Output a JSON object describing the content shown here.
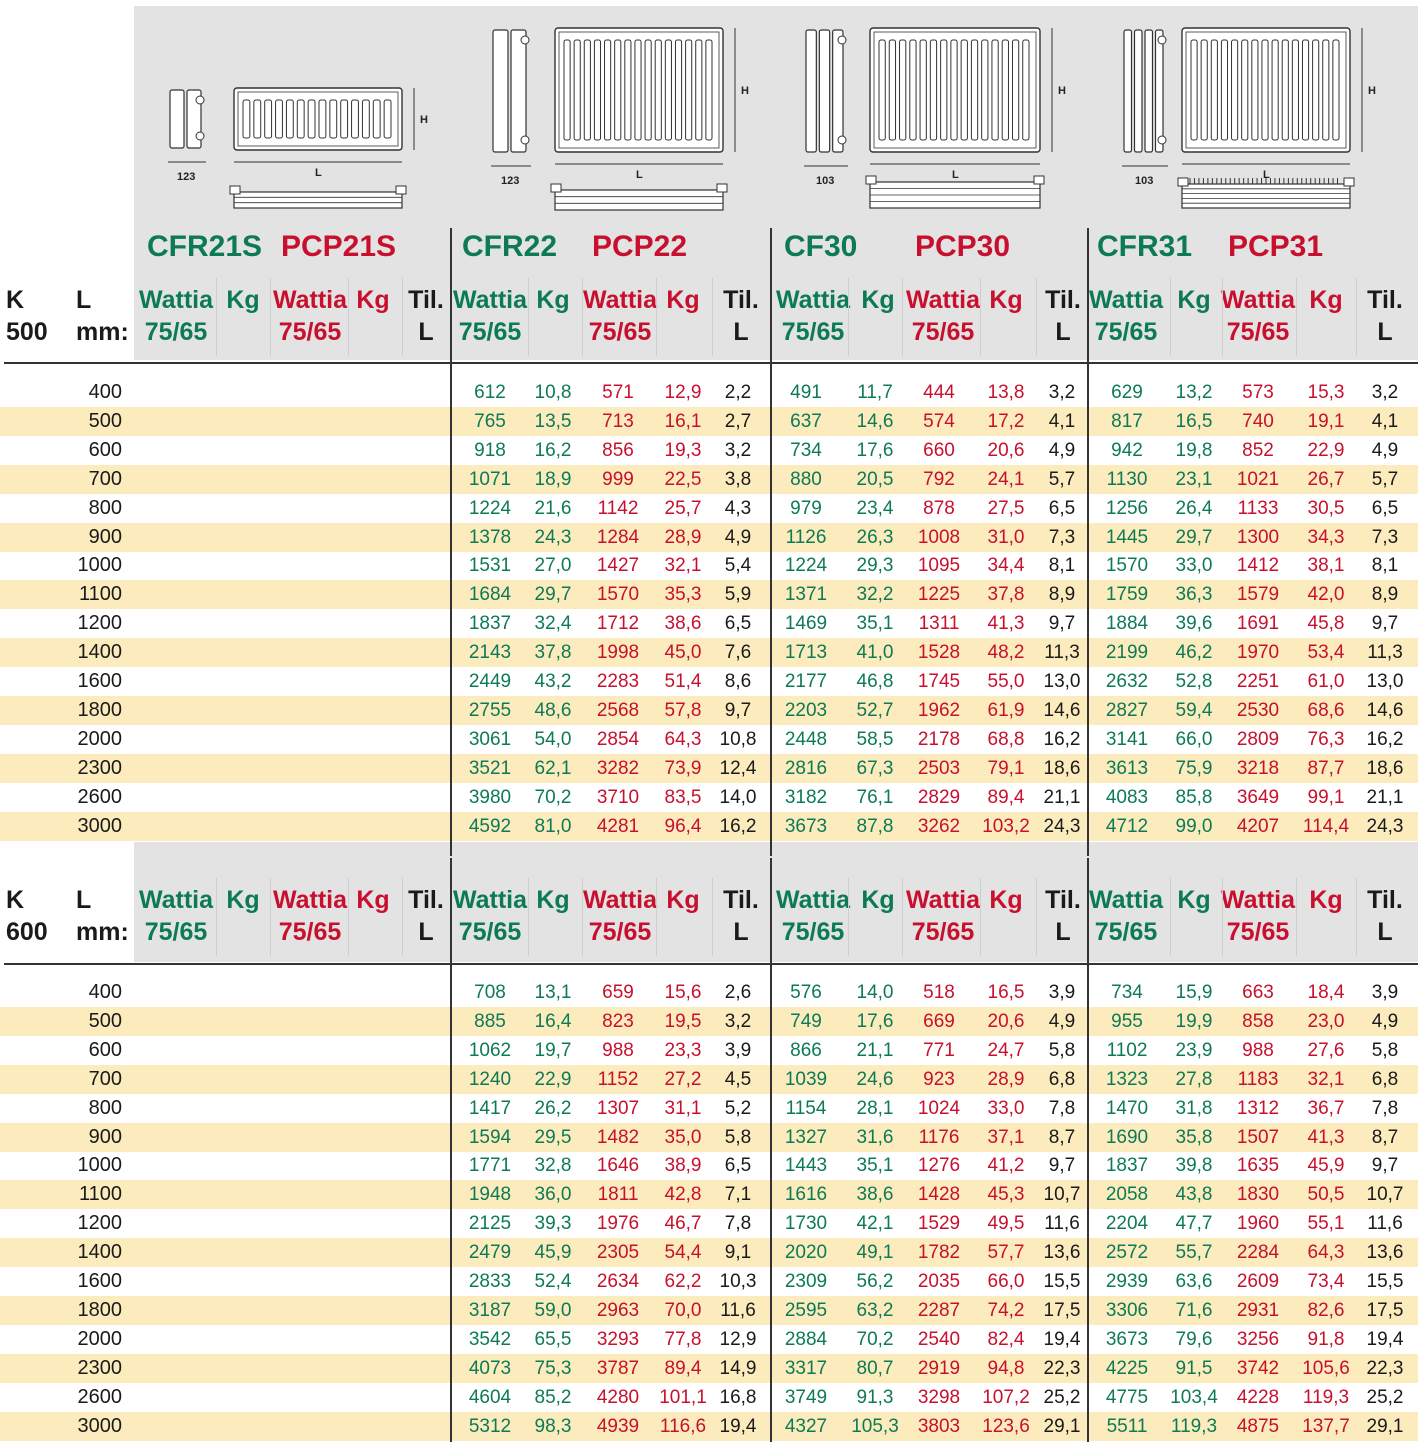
{
  "series_labels": [
    {
      "left": "CFR21S",
      "right": "PCP21S"
    },
    {
      "left": "CFR22",
      "right": "PCP22"
    },
    {
      "left": "CF30",
      "right": "PCP30"
    },
    {
      "left": "CFR31",
      "right": "PCP31"
    }
  ],
  "depths": [
    "123",
    "123",
    "103",
    "103"
  ],
  "dim_labels": {
    "h": "H",
    "l": "L"
  },
  "header": {
    "k": "K",
    "l": "L",
    "mm": "mm:",
    "wattia": "Wattia",
    "wattia_sub": "75/65",
    "kg": "Kg",
    "til": "Til.",
    "til_sub": "L"
  },
  "sections": [
    {
      "k_value": "500",
      "rows": [
        {
          "L": "400",
          "v": [
            "612",
            "10,8",
            "571",
            "12,9",
            "2,2",
            "491",
            "11,7",
            "444",
            "13,8",
            "3,2",
            "629",
            "13,2",
            "573",
            "15,3",
            "3,2"
          ]
        },
        {
          "L": "500",
          "v": [
            "765",
            "13,5",
            "713",
            "16,1",
            "2,7",
            "637",
            "14,6",
            "574",
            "17,2",
            "4,1",
            "817",
            "16,5",
            "740",
            "19,1",
            "4,1"
          ]
        },
        {
          "L": "600",
          "v": [
            "918",
            "16,2",
            "856",
            "19,3",
            "3,2",
            "734",
            "17,6",
            "660",
            "20,6",
            "4,9",
            "942",
            "19,8",
            "852",
            "22,9",
            "4,9"
          ]
        },
        {
          "L": "700",
          "v": [
            "1071",
            "18,9",
            "999",
            "22,5",
            "3,8",
            "880",
            "20,5",
            "792",
            "24,1",
            "5,7",
            "1130",
            "23,1",
            "1021",
            "26,7",
            "5,7"
          ]
        },
        {
          "L": "800",
          "v": [
            "1224",
            "21,6",
            "1142",
            "25,7",
            "4,3",
            "979",
            "23,4",
            "878",
            "27,5",
            "6,5",
            "1256",
            "26,4",
            "1133",
            "30,5",
            "6,5"
          ]
        },
        {
          "L": "900",
          "v": [
            "1378",
            "24,3",
            "1284",
            "28,9",
            "4,9",
            "1126",
            "26,3",
            "1008",
            "31,0",
            "7,3",
            "1445",
            "29,7",
            "1300",
            "34,3",
            "7,3"
          ]
        },
        {
          "L": "1000",
          "v": [
            "1531",
            "27,0",
            "1427",
            "32,1",
            "5,4",
            "1224",
            "29,3",
            "1095",
            "34,4",
            "8,1",
            "1570",
            "33,0",
            "1412",
            "38,1",
            "8,1"
          ]
        },
        {
          "L": "1100",
          "v": [
            "1684",
            "29,7",
            "1570",
            "35,3",
            "5,9",
            "1371",
            "32,2",
            "1225",
            "37,8",
            "8,9",
            "1759",
            "36,3",
            "1579",
            "42,0",
            "8,9"
          ]
        },
        {
          "L": "1200",
          "v": [
            "1837",
            "32,4",
            "1712",
            "38,6",
            "6,5",
            "1469",
            "35,1",
            "1311",
            "41,3",
            "9,7",
            "1884",
            "39,6",
            "1691",
            "45,8",
            "9,7"
          ]
        },
        {
          "L": "1400",
          "v": [
            "2143",
            "37,8",
            "1998",
            "45,0",
            "7,6",
            "1713",
            "41,0",
            "1528",
            "48,2",
            "11,3",
            "2199",
            "46,2",
            "1970",
            "53,4",
            "11,3"
          ]
        },
        {
          "L": "1600",
          "v": [
            "2449",
            "43,2",
            "2283",
            "51,4",
            "8,6",
            "2177",
            "46,8",
            "1745",
            "55,0",
            "13,0",
            "2632",
            "52,8",
            "2251",
            "61,0",
            "13,0"
          ]
        },
        {
          "L": "1800",
          "v": [
            "2755",
            "48,6",
            "2568",
            "57,8",
            "9,7",
            "2203",
            "52,7",
            "1962",
            "61,9",
            "14,6",
            "2827",
            "59,4",
            "2530",
            "68,6",
            "14,6"
          ]
        },
        {
          "L": "2000",
          "v": [
            "3061",
            "54,0",
            "2854",
            "64,3",
            "10,8",
            "2448",
            "58,5",
            "2178",
            "68,8",
            "16,2",
            "3141",
            "66,0",
            "2809",
            "76,3",
            "16,2"
          ]
        },
        {
          "L": "2300",
          "v": [
            "3521",
            "62,1",
            "3282",
            "73,9",
            "12,4",
            "2816",
            "67,3",
            "2503",
            "79,1",
            "18,6",
            "3613",
            "75,9",
            "3218",
            "87,7",
            "18,6"
          ]
        },
        {
          "L": "2600",
          "v": [
            "3980",
            "70,2",
            "3710",
            "83,5",
            "14,0",
            "3182",
            "76,1",
            "2829",
            "89,4",
            "21,1",
            "4083",
            "85,8",
            "3649",
            "99,1",
            "21,1"
          ]
        },
        {
          "L": "3000",
          "v": [
            "4592",
            "81,0",
            "4281",
            "96,4",
            "16,2",
            "3673",
            "87,8",
            "3262",
            "103,2",
            "24,3",
            "4712",
            "99,0",
            "4207",
            "114,4",
            "24,3"
          ]
        }
      ]
    },
    {
      "k_value": "600",
      "rows": [
        {
          "L": "400",
          "v": [
            "708",
            "13,1",
            "659",
            "15,6",
            "2,6",
            "576",
            "14,0",
            "518",
            "16,5",
            "3,9",
            "734",
            "15,9",
            "663",
            "18,4",
            "3,9"
          ]
        },
        {
          "L": "500",
          "v": [
            "885",
            "16,4",
            "823",
            "19,5",
            "3,2",
            "749",
            "17,6",
            "669",
            "20,6",
            "4,9",
            "955",
            "19,9",
            "858",
            "23,0",
            "4,9"
          ]
        },
        {
          "L": "600",
          "v": [
            "1062",
            "19,7",
            "988",
            "23,3",
            "3,9",
            "866",
            "21,1",
            "771",
            "24,7",
            "5,8",
            "1102",
            "23,9",
            "988",
            "27,6",
            "5,8"
          ]
        },
        {
          "L": "700",
          "v": [
            "1240",
            "22,9",
            "1152",
            "27,2",
            "4,5",
            "1039",
            "24,6",
            "923",
            "28,9",
            "6,8",
            "1323",
            "27,8",
            "1183",
            "32,1",
            "6,8"
          ]
        },
        {
          "L": "800",
          "v": [
            "1417",
            "26,2",
            "1307",
            "31,1",
            "5,2",
            "1154",
            "28,1",
            "1024",
            "33,0",
            "7,8",
            "1470",
            "31,8",
            "1312",
            "36,7",
            "7,8"
          ]
        },
        {
          "L": "900",
          "v": [
            "1594",
            "29,5",
            "1482",
            "35,0",
            "5,8",
            "1327",
            "31,6",
            "1176",
            "37,1",
            "8,7",
            "1690",
            "35,8",
            "1507",
            "41,3",
            "8,7"
          ]
        },
        {
          "L": "1000",
          "v": [
            "1771",
            "32,8",
            "1646",
            "38,9",
            "6,5",
            "1443",
            "35,1",
            "1276",
            "41,2",
            "9,7",
            "1837",
            "39,8",
            "1635",
            "45,9",
            "9,7"
          ]
        },
        {
          "L": "1100",
          "v": [
            "1948",
            "36,0",
            "1811",
            "42,8",
            "7,1",
            "1616",
            "38,6",
            "1428",
            "45,3",
            "10,7",
            "2058",
            "43,8",
            "1830",
            "50,5",
            "10,7"
          ]
        },
        {
          "L": "1200",
          "v": [
            "2125",
            "39,3",
            "1976",
            "46,7",
            "7,8",
            "1730",
            "42,1",
            "1529",
            "49,5",
            "11,6",
            "2204",
            "47,7",
            "1960",
            "55,1",
            "11,6"
          ]
        },
        {
          "L": "1400",
          "v": [
            "2479",
            "45,9",
            "2305",
            "54,4",
            "9,1",
            "2020",
            "49,1",
            "1782",
            "57,7",
            "13,6",
            "2572",
            "55,7",
            "2284",
            "64,3",
            "13,6"
          ]
        },
        {
          "L": "1600",
          "v": [
            "2833",
            "52,4",
            "2634",
            "62,2",
            "10,3",
            "2309",
            "56,2",
            "2035",
            "66,0",
            "15,5",
            "2939",
            "63,6",
            "2609",
            "73,4",
            "15,5"
          ]
        },
        {
          "L": "1800",
          "v": [
            "3187",
            "59,0",
            "2963",
            "70,0",
            "11,6",
            "2595",
            "63,2",
            "2287",
            "74,2",
            "17,5",
            "3306",
            "71,6",
            "2931",
            "82,6",
            "17,5"
          ]
        },
        {
          "L": "2000",
          "v": [
            "3542",
            "65,5",
            "3293",
            "77,8",
            "12,9",
            "2884",
            "70,2",
            "2540",
            "82,4",
            "19,4",
            "3673",
            "79,6",
            "3256",
            "91,8",
            "19,4"
          ]
        },
        {
          "L": "2300",
          "v": [
            "4073",
            "75,3",
            "3787",
            "89,4",
            "14,9",
            "3317",
            "80,7",
            "2919",
            "94,8",
            "22,3",
            "4225",
            "91,5",
            "3742",
            "105,6",
            "22,3"
          ]
        },
        {
          "L": "2600",
          "v": [
            "4604",
            "85,2",
            "4280",
            "101,1",
            "16,8",
            "3749",
            "91,3",
            "3298",
            "107,2",
            "25,2",
            "4775",
            "103,4",
            "4228",
            "119,3",
            "25,2"
          ]
        },
        {
          "L": "3000",
          "v": [
            "5312",
            "98,3",
            "4939",
            "116,6",
            "19,4",
            "4327",
            "105,3",
            "3803",
            "123,6",
            "29,1",
            "5511",
            "119,3",
            "4875",
            "137,7",
            "29,1"
          ]
        }
      ]
    }
  ]
}
